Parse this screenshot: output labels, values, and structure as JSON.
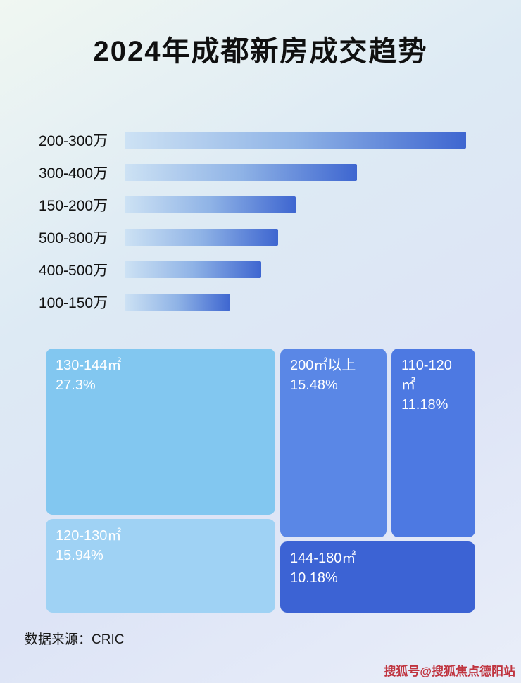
{
  "title": "2024年成都新房成交趋势",
  "chart_data": [
    {
      "type": "bar",
      "orientation": "horizontal",
      "title": "",
      "xlabel": "",
      "ylabel": "",
      "categories": [
        "200-300万",
        "300-400万",
        "150-200万",
        "500-800万",
        "400-500万",
        "100-150万"
      ],
      "values": [
        100,
        68,
        50,
        45,
        40,
        31
      ],
      "value_note": "relative bar lengths (longest = 100); no numeric axis or data labels are shown in the image",
      "bar_gradient": [
        "#cde2f4",
        "#3e66d0"
      ],
      "grid": false,
      "legend": false
    },
    {
      "type": "treemap",
      "title": "",
      "items": [
        {
          "label": "130-144㎡",
          "value": "27.3%",
          "color": "#82c7f0"
        },
        {
          "label": "200㎡以上",
          "value": "15.48%",
          "color": "#5a87e6"
        },
        {
          "label": "110-120㎡",
          "value": "11.18%",
          "color": "#4d79e2"
        },
        {
          "label": "120-130㎡",
          "value": "15.94%",
          "color": "#9fd2f4"
        },
        {
          "label": "144-180㎡",
          "value": "10.18%",
          "color": "#3c63d4"
        }
      ]
    }
  ],
  "footer": {
    "source": "数据来源：CRIC"
  },
  "watermark": "搜狐号@搜狐焦点德阳站",
  "colors": {
    "title_text": "#101010",
    "watermark_text": "#c03540"
  }
}
